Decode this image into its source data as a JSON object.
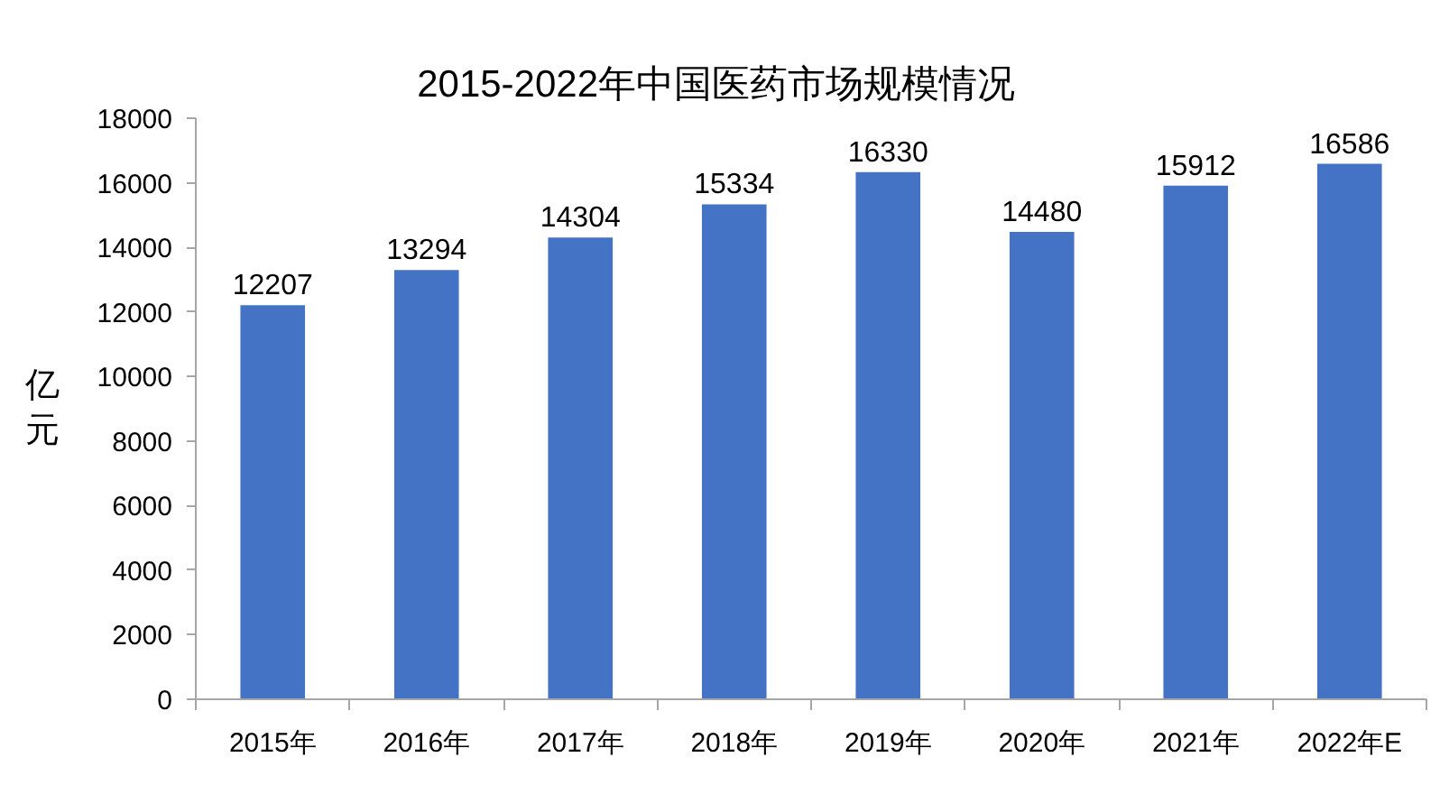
{
  "chart_data": {
    "type": "bar",
    "title": "2015-2022年中国医药市场规模情况",
    "ylabel": "亿元",
    "categories": [
      "2015年",
      "2016年",
      "2017年",
      "2018年",
      "2019年",
      "2020年",
      "2021年",
      "2022年E"
    ],
    "values": [
      12207,
      13294,
      14304,
      15334,
      16330,
      14480,
      15912,
      16586
    ],
    "color": "#4472c4",
    "ylim": [
      0,
      18000
    ],
    "yticks": [
      0,
      2000,
      4000,
      6000,
      8000,
      10000,
      12000,
      14000,
      16000,
      18000
    ],
    "data_labels": true
  }
}
